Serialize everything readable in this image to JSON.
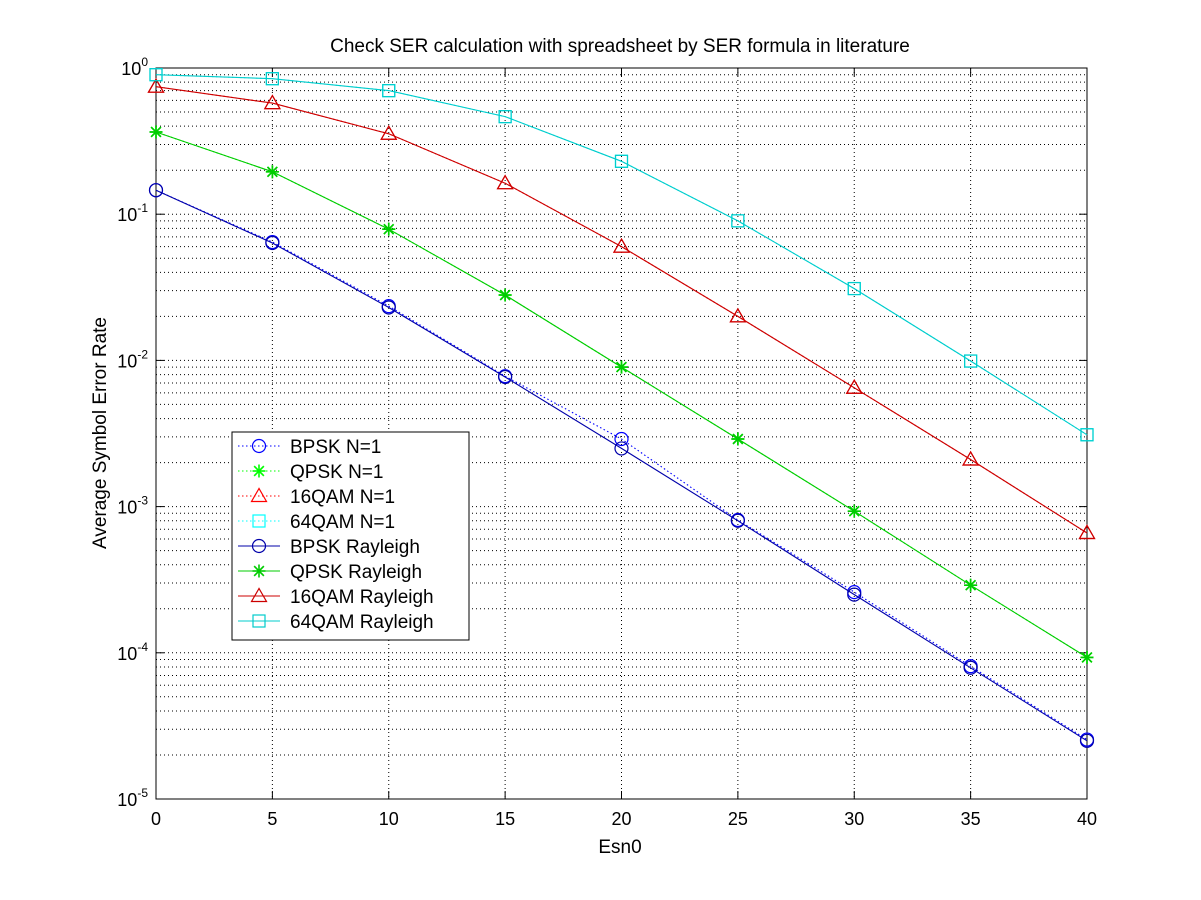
{
  "chart_data": {
    "type": "line",
    "title": "Check SER calculation with spreadsheet by SER formula in literature",
    "xlabel": "Esn0",
    "ylabel": "Average Symbol Error Rate",
    "x": [
      0,
      5,
      10,
      15,
      20,
      25,
      30,
      35,
      40
    ],
    "xlim": [
      0,
      40
    ],
    "ylim": [
      1e-05,
      1
    ],
    "yscale": "log",
    "xticks": [
      "0",
      "5",
      "10",
      "15",
      "20",
      "25",
      "30",
      "35",
      "40"
    ],
    "yticks": [
      {
        "base": "10",
        "exp": "0",
        "value": 1
      },
      {
        "base": "10",
        "exp": "-1",
        "value": 0.1
      },
      {
        "base": "10",
        "exp": "-2",
        "value": 0.01
      },
      {
        "base": "10",
        "exp": "-3",
        "value": 0.001
      },
      {
        "base": "10",
        "exp": "-4",
        "value": 0.0001
      },
      {
        "base": "10",
        "exp": "-5",
        "value": 1e-05
      }
    ],
    "grid": true,
    "legend_position": "left-middle",
    "series": [
      {
        "name": "BPSK N=1",
        "color": "#0000ff",
        "marker": "circle",
        "line": "dotted",
        "values": [
          0.146,
          0.0645,
          0.0235,
          0.0078,
          0.0029,
          0.00081,
          0.00026,
          8.1e-05,
          2.55e-05
        ]
      },
      {
        "name": "QPSK N=1",
        "color": "#00ff00",
        "marker": "star",
        "line": "dotted",
        "values": [
          0.365,
          0.195,
          0.079,
          0.028,
          0.009,
          0.0029,
          0.00093,
          0.00029,
          9.3e-05
        ]
      },
      {
        "name": "16QAM N=1",
        "color": "#ff0000",
        "marker": "triangle",
        "line": "dotted",
        "values": [
          0.745,
          0.575,
          0.355,
          0.163,
          0.06,
          0.02,
          0.0065,
          0.0021,
          0.00066
        ]
      },
      {
        "name": "64QAM N=1",
        "color": "#00ffff",
        "marker": "square",
        "line": "dotted",
        "values": [
          0.9,
          0.845,
          0.7,
          0.465,
          0.23,
          0.09,
          0.031,
          0.0099,
          0.0031
        ]
      },
      {
        "name": "BPSK Rayleigh",
        "color": "#0000aa",
        "marker": "circle",
        "line": "solid",
        "values": [
          0.146,
          0.0635,
          0.023,
          0.0077,
          0.0025,
          0.0008,
          0.00025,
          7.9e-05,
          2.5e-05
        ]
      },
      {
        "name": "QPSK Rayleigh",
        "color": "#00cc00",
        "marker": "star",
        "line": "solid",
        "values": [
          0.365,
          0.195,
          0.079,
          0.028,
          0.009,
          0.0029,
          0.00093,
          0.00029,
          9.3e-05
        ]
      },
      {
        "name": "16QAM Rayleigh",
        "color": "#cc0000",
        "marker": "triangle",
        "line": "solid",
        "values": [
          0.745,
          0.575,
          0.355,
          0.163,
          0.06,
          0.02,
          0.0065,
          0.0021,
          0.00066
        ]
      },
      {
        "name": "64QAM Rayleigh",
        "color": "#00cccc",
        "marker": "square",
        "line": "solid",
        "values": [
          0.9,
          0.845,
          0.7,
          0.465,
          0.23,
          0.09,
          0.031,
          0.0099,
          0.0031
        ]
      }
    ]
  }
}
